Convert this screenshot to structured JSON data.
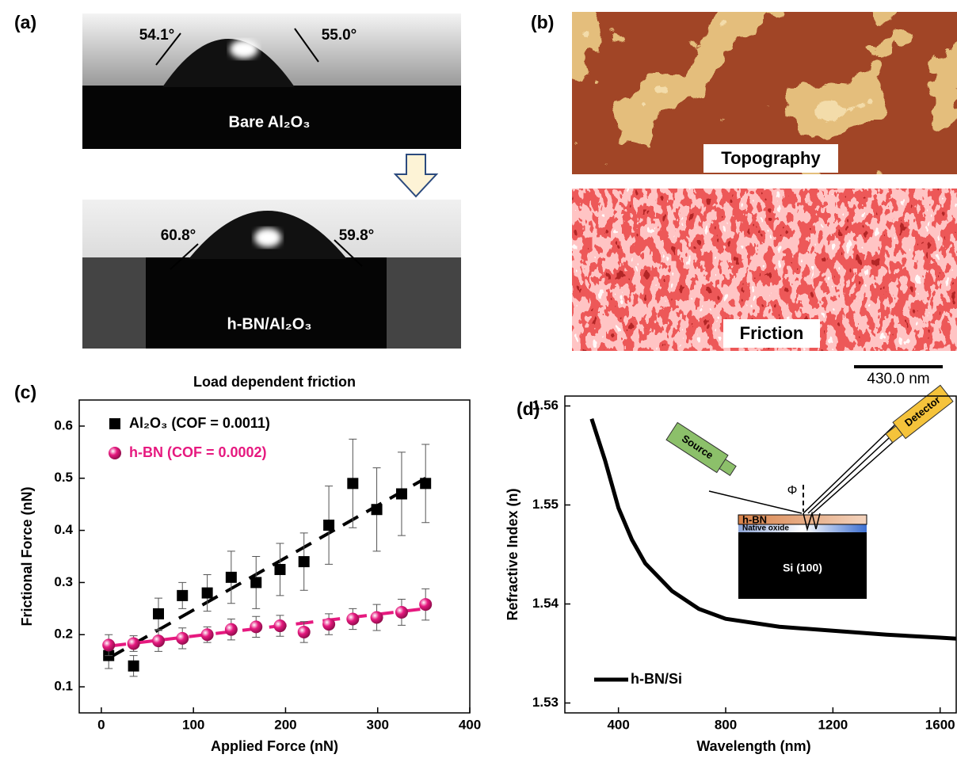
{
  "panels": {
    "a": {
      "label": "(a)",
      "top": {
        "left_angle": "54.1°",
        "right_angle": "55.0°",
        "caption": "Bare Al₂O₃"
      },
      "bottom": {
        "left_angle": "60.8°",
        "right_angle": "59.8°",
        "caption": "h-BN/Al₂O₃"
      }
    },
    "b": {
      "label": "(b)",
      "top_caption": "Topography",
      "bottom_caption": "Friction",
      "scale_bar": "430.0 nm"
    },
    "c": {
      "label": "(c)"
    },
    "d": {
      "label": "(d)"
    }
  },
  "chart_data": [
    {
      "type": "scatter",
      "title": "Load dependent friction",
      "x_label": "Applied Force (nN)",
      "y_label": "Frictional Force (nN)",
      "x": [
        8,
        35,
        62,
        88,
        115,
        141,
        168,
        194,
        220,
        247,
        273,
        299,
        326,
        352
      ],
      "xlim": [
        -24,
        400
      ],
      "xticks": [
        0,
        100,
        200,
        300,
        400
      ],
      "ylim": [
        0.05,
        0.65
      ],
      "yticks": [
        0.1,
        0.2,
        0.3,
        0.4,
        0.5,
        0.6
      ],
      "grid": false,
      "legend": "upper left",
      "series": [
        {
          "name": "Al₂O₃ (COF = 0.0011)",
          "color": "#000000",
          "marker": "square",
          "values": [
            0.16,
            0.14,
            0.24,
            0.275,
            0.28,
            0.31,
            0.3,
            0.325,
            0.34,
            0.41,
            0.49,
            0.44,
            0.47,
            0.49
          ],
          "errors": [
            0.025,
            0.02,
            0.03,
            0.025,
            0.035,
            0.05,
            0.05,
            0.05,
            0.055,
            0.075,
            0.085,
            0.08,
            0.08,
            0.075
          ],
          "fit": {
            "x": [
              8,
              352
            ],
            "y": [
              0.155,
              0.5
            ]
          }
        },
        {
          "name": "h-BN (COF = 0.0002)",
          "color": "#e6197f",
          "marker": "sphere",
          "values": [
            0.18,
            0.183,
            0.188,
            0.193,
            0.2,
            0.21,
            0.215,
            0.217,
            0.205,
            0.22,
            0.23,
            0.233,
            0.243,
            0.258
          ],
          "errors": [
            0.02,
            0.015,
            0.02,
            0.02,
            0.015,
            0.02,
            0.02,
            0.02,
            0.02,
            0.02,
            0.02,
            0.025,
            0.025,
            0.03
          ],
          "fit": {
            "x": [
              8,
              352
            ],
            "y": [
              0.178,
              0.25
            ]
          }
        }
      ]
    },
    {
      "type": "line",
      "x_label": "Wavelength (nm)",
      "y_label": "Refractive Index (n)",
      "x": [
        300,
        350,
        400,
        450,
        500,
        600,
        700,
        800,
        1000,
        1200,
        1400,
        1600,
        1660
      ],
      "xlim": [
        200,
        1660
      ],
      "xticks": [
        400,
        800,
        1200,
        1600
      ],
      "ylim": [
        1.529,
        1.561
      ],
      "yticks": [
        1.53,
        1.54,
        1.55,
        1.56
      ],
      "grid": false,
      "legend": "lower left",
      "series": [
        {
          "name": "h-BN/Si",
          "color": "#000000",
          "values": [
            1.5587,
            1.5545,
            1.5497,
            1.5465,
            1.5441,
            1.5413,
            1.5395,
            1.5385,
            1.5377,
            1.5373,
            1.5369,
            1.5366,
            1.5365
          ]
        }
      ],
      "inset": {
        "source": "Source",
        "detector": "Detector",
        "angle": "Φ",
        "film": "h-BN",
        "oxide": "Native oxide",
        "substrate": "Si (100)"
      }
    }
  ]
}
